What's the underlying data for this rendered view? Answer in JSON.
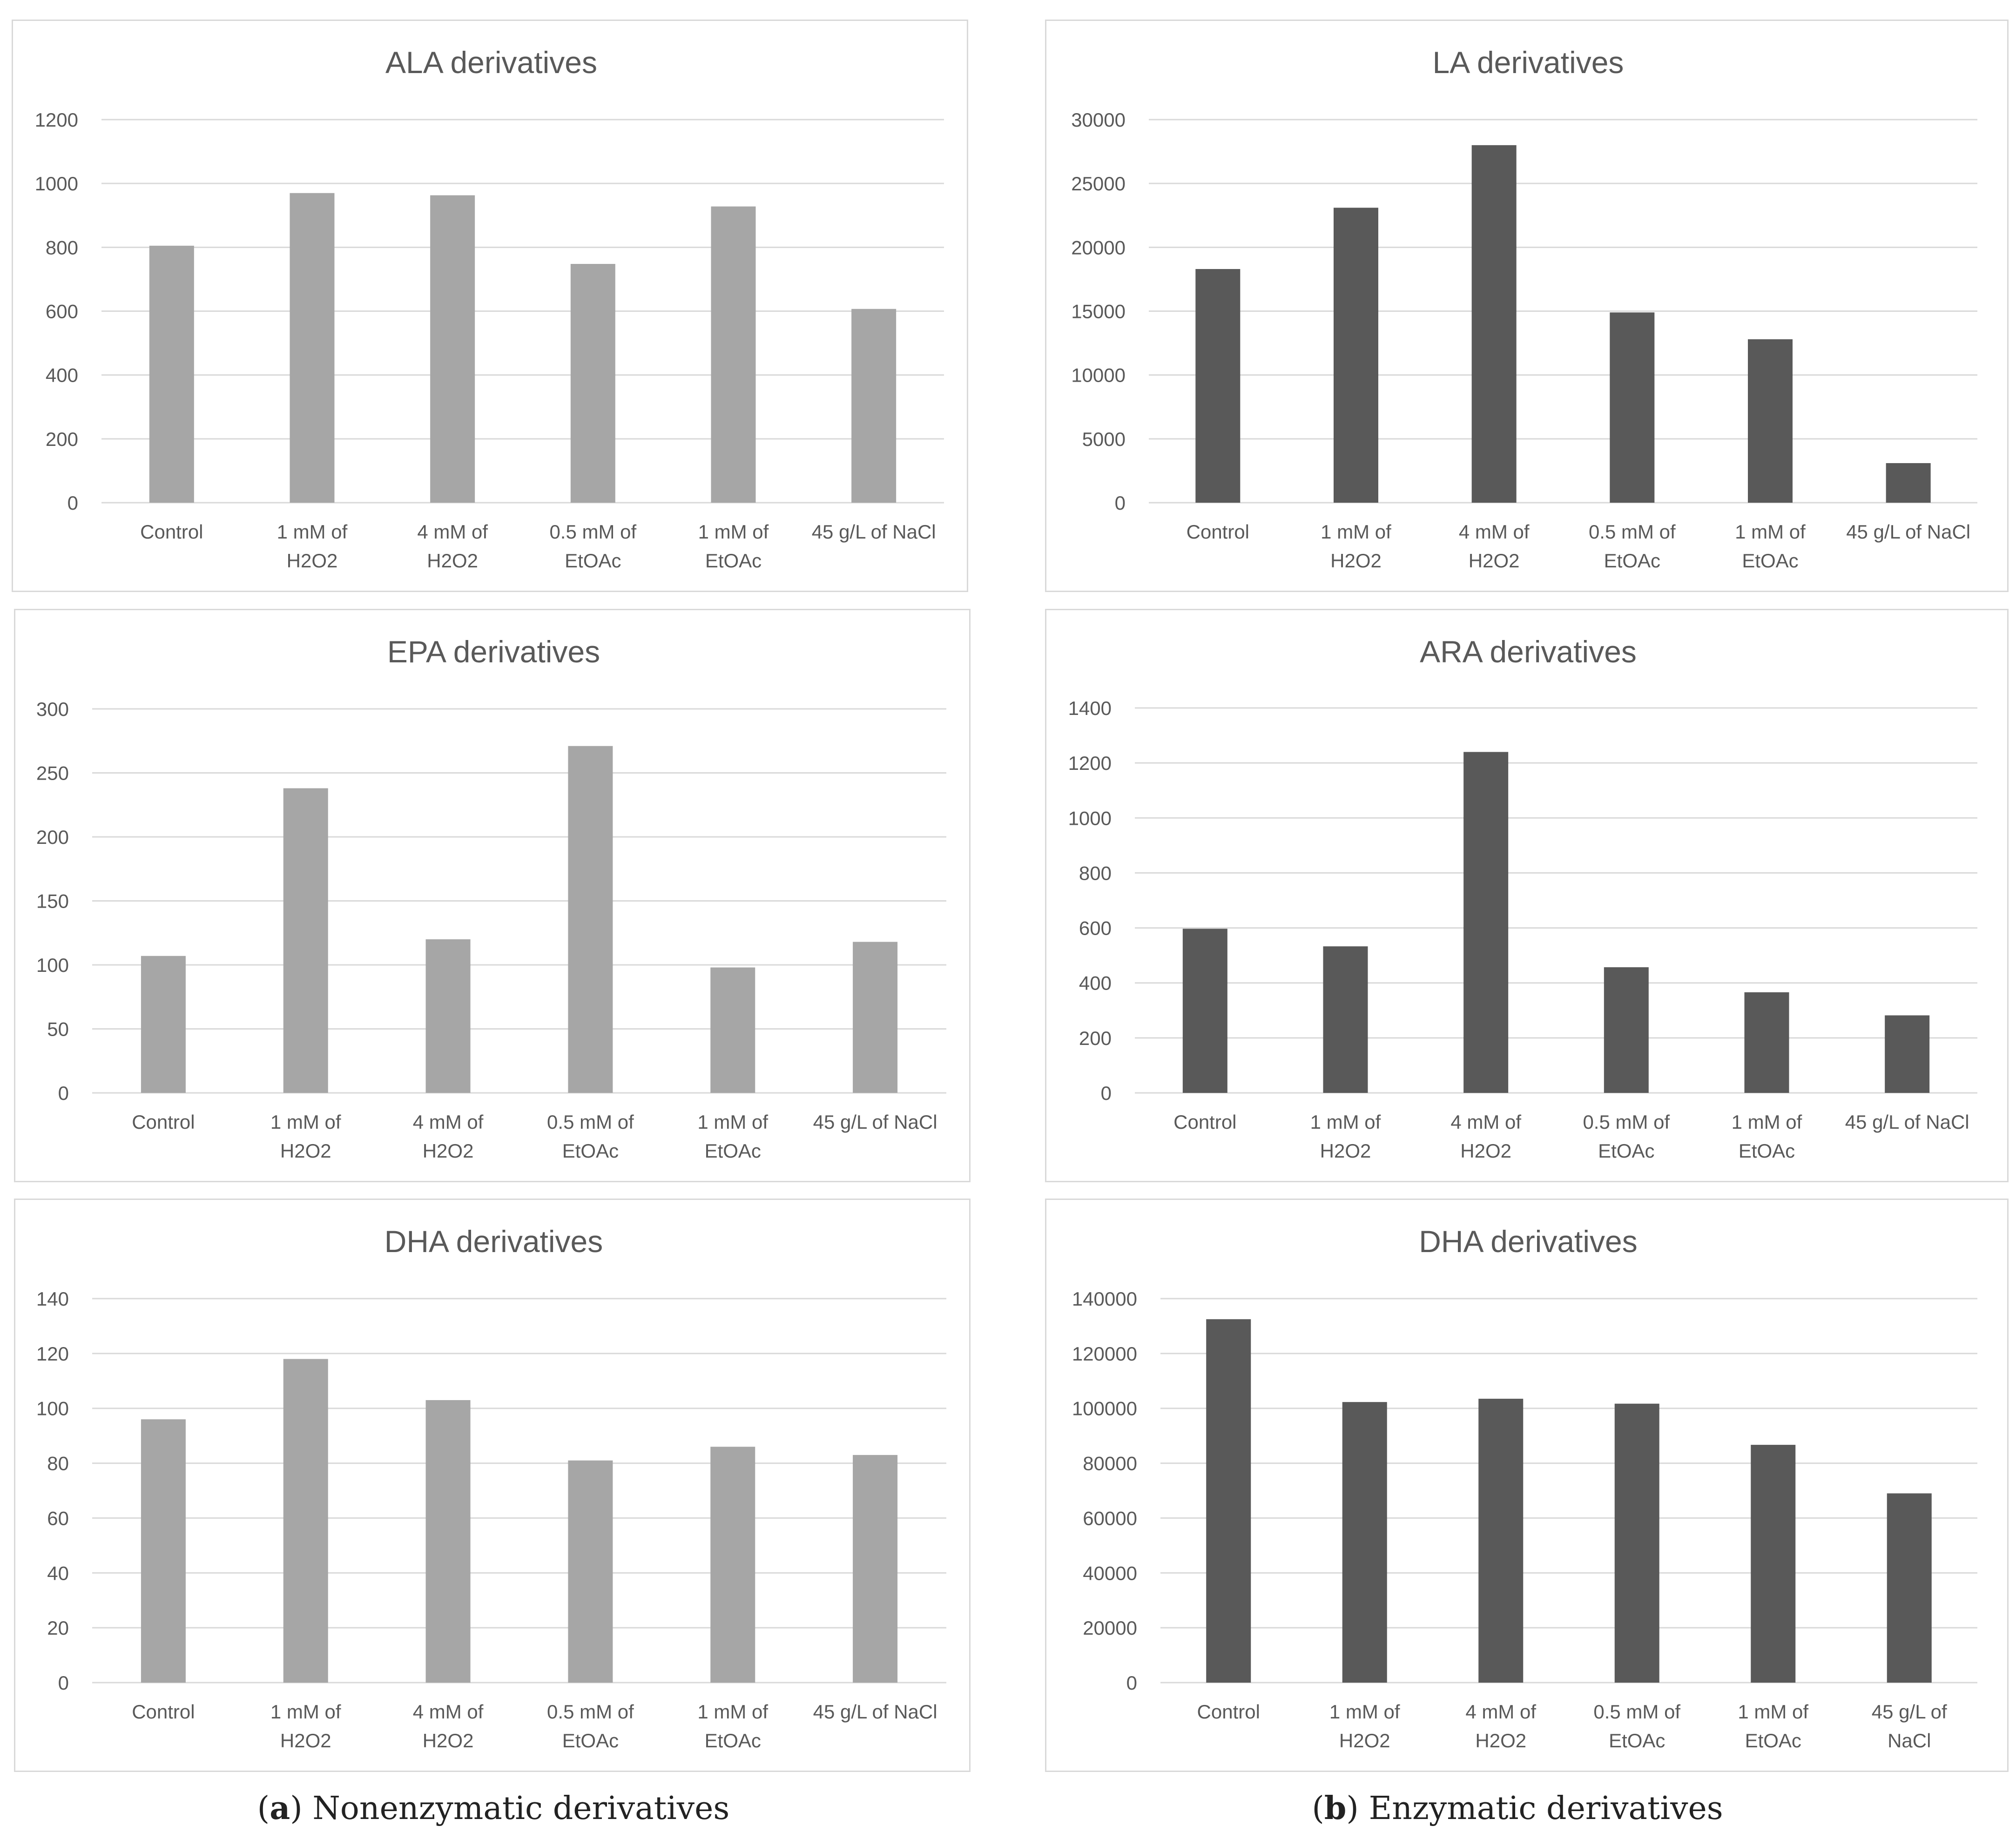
{
  "figure": {
    "colors": {
      "nonenzymatic": "#a6a6a6",
      "enzymatic": "#595959",
      "grid": "#d9d9d9",
      "label": "#595959"
    },
    "captions": [
      {
        "letter": "a",
        "text": " Nonenzymatic derivatives"
      },
      {
        "letter": "b",
        "text": " Enzymatic derivatives"
      }
    ]
  },
  "chart_data": [
    {
      "type": "bar",
      "title": "ALA derivatives",
      "group": "nonenzymatic",
      "categories": [
        [
          "Control"
        ],
        [
          "1 mM of",
          "H2O2"
        ],
        [
          "4 mM of",
          "H2O2"
        ],
        [
          "0.5 mM of",
          "EtOAc"
        ],
        [
          "1 mM of",
          "EtOAc"
        ],
        [
          "45 g/L of NaCl"
        ]
      ],
      "values": [
        805,
        970,
        963,
        748,
        928,
        607
      ],
      "yticks": [
        "0",
        "200",
        "400",
        "600",
        "800",
        "1000",
        "1200"
      ],
      "ylim": [
        0,
        1200
      ],
      "xlabel": "",
      "ylabel": "",
      "grid": true
    },
    {
      "type": "bar",
      "title": "LA derivatives",
      "group": "enzymatic",
      "categories": [
        [
          "Control"
        ],
        [
          "1 mM of",
          "H2O2"
        ],
        [
          "4 mM of",
          "H2O2"
        ],
        [
          "0.5 mM of",
          "EtOAc"
        ],
        [
          "1 mM of",
          "EtOAc"
        ],
        [
          "45 g/L of NaCl"
        ]
      ],
      "values": [
        18300,
        23100,
        28000,
        14900,
        12800,
        3100
      ],
      "yticks": [
        "0",
        "5000",
        "10000",
        "15000",
        "20000",
        "25000",
        "30000"
      ],
      "ylim": [
        0,
        30000
      ],
      "xlabel": "",
      "ylabel": "",
      "grid": true
    },
    {
      "type": "bar",
      "title": "EPA derivatives",
      "group": "nonenzymatic",
      "categories": [
        [
          "Control"
        ],
        [
          "1 mM of",
          "H2O2"
        ],
        [
          "4 mM of",
          "H2O2"
        ],
        [
          "0.5 mM of",
          "EtOAc"
        ],
        [
          "1 mM of",
          "EtOAc"
        ],
        [
          "45 g/L of NaCl"
        ]
      ],
      "values": [
        107,
        238,
        120,
        271,
        98,
        118
      ],
      "yticks": [
        "0",
        "50",
        "100",
        "150",
        "200",
        "250",
        "300"
      ],
      "ylim": [
        0,
        300
      ],
      "xlabel": "",
      "ylabel": "",
      "grid": true
    },
    {
      "type": "bar",
      "title": "ARA derivatives",
      "group": "enzymatic",
      "categories": [
        [
          "Control"
        ],
        [
          "1 mM of",
          "H2O2"
        ],
        [
          "4 mM of",
          "H2O2"
        ],
        [
          "0.5 mM of",
          "EtOAc"
        ],
        [
          "1 mM of",
          "EtOAc"
        ],
        [
          "45 g/L of NaCl"
        ]
      ],
      "values": [
        597,
        533,
        1240,
        457,
        366,
        282
      ],
      "yticks": [
        "0",
        "200",
        "400",
        "600",
        "800",
        "1000",
        "1200",
        "1400"
      ],
      "ylim": [
        0,
        1400
      ],
      "xlabel": "",
      "ylabel": "",
      "grid": true
    },
    {
      "type": "bar",
      "title": "DHA derivatives",
      "group": "nonenzymatic",
      "categories": [
        [
          "Control"
        ],
        [
          "1 mM of",
          "H2O2"
        ],
        [
          "4 mM of",
          "H2O2"
        ],
        [
          "0.5 mM of",
          "EtOAc"
        ],
        [
          "1 mM of",
          "EtOAc"
        ],
        [
          "45 g/L of NaCl"
        ]
      ],
      "values": [
        96,
        118,
        103,
        81,
        86,
        83
      ],
      "yticks": [
        "0",
        "20",
        "40",
        "60",
        "80",
        "100",
        "120",
        "140"
      ],
      "ylim": [
        0,
        140
      ],
      "xlabel": "",
      "ylabel": "",
      "grid": true
    },
    {
      "type": "bar",
      "title": "DHA derivatives",
      "group": "enzymatic",
      "categories": [
        [
          "Control"
        ],
        [
          "1 mM of",
          "H2O2"
        ],
        [
          "4 mM of",
          "H2O2"
        ],
        [
          "0.5 mM of",
          "EtOAc"
        ],
        [
          "1 mM of",
          "EtOAc"
        ],
        [
          "45 g/L of",
          "NaCl"
        ]
      ],
      "values": [
        132500,
        102300,
        103500,
        101700,
        86700,
        69000
      ],
      "yticks": [
        "0",
        "20000",
        "40000",
        "60000",
        "80000",
        "100000",
        "120000",
        "140000"
      ],
      "ylim": [
        0,
        140000
      ],
      "xlabel": "",
      "ylabel": "",
      "grid": true
    }
  ]
}
